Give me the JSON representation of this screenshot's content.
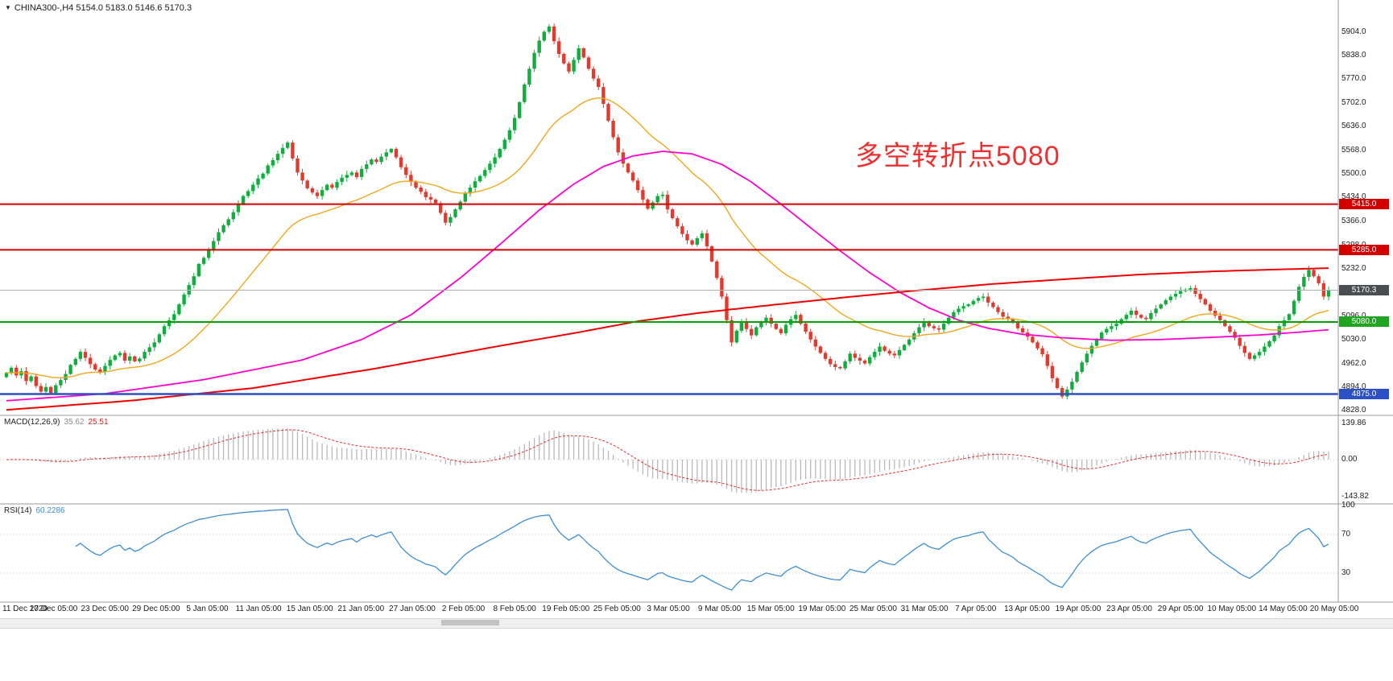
{
  "window": {
    "dropdown_icon": "▼",
    "symbol_period": "CHINA300-,H4",
    "ohlc_text": "5154.0 5183.0 5146.6 5170.3"
  },
  "annotation": {
    "text": "多空转折点5080"
  },
  "indicators": {
    "macd": {
      "name": "MACD(12,26,9)",
      "value_main": "35.62",
      "value_signal": "25.51",
      "params": {
        "fast": 12,
        "slow": 26,
        "signal": 9
      },
      "axis_labels": [
        "139.86",
        "0.00",
        "-143.82"
      ],
      "axis_values": [
        139.86,
        0,
        -143.82
      ]
    },
    "rsi": {
      "name": "RSI(14)",
      "value": "60.2286",
      "period": 14,
      "axis_labels": [
        "100",
        "70",
        "30"
      ],
      "axis_values": [
        100,
        70,
        30
      ],
      "level_lines": [
        70,
        30
      ]
    }
  },
  "price_scale": {
    "ticks": [
      5904,
      5838,
      5770,
      5702,
      5636,
      5568,
      5500,
      5434,
      5366,
      5298,
      5232,
      5164,
      5096,
      5030,
      4962,
      4894,
      4828
    ],
    "badges": [
      {
        "value": 5415.0,
        "text": "5415.0",
        "bg": "#d40000"
      },
      {
        "value": 5285.0,
        "text": "5285.0",
        "bg": "#d40000"
      },
      {
        "value": 5080.0,
        "text": "5080.0",
        "bg": "#1fa51f"
      },
      {
        "value": 4875.0,
        "text": "4875.0",
        "bg": "#2b50c6"
      },
      {
        "value": 5170.3,
        "text": "5170.3",
        "bg": "#4a4e53"
      }
    ]
  },
  "hlines": [
    {
      "value": 5170.3,
      "color": "#b0b0b0",
      "w": 1
    },
    {
      "value": 5415.0,
      "color": "#d40000",
      "w": 2
    },
    {
      "value": 5285.0,
      "color": "#d40000",
      "w": 2
    },
    {
      "value": 5080.0,
      "color": "#00a000",
      "w": 2
    },
    {
      "value": 4875.0,
      "color": "#2b50c6",
      "w": 2.5
    }
  ],
  "colors": {
    "up": "#0faf3d",
    "down": "#e23a2e",
    "macd_hist": "#b9b9b9",
    "macd_signal": "#e03131",
    "rsi": "#3f8ed0",
    "annotation": "#ed2f2f",
    "grid_dotted": "#c8c8c8",
    "separator": "#9a9a9a"
  },
  "chart_data": {
    "type": "candlestick",
    "symbol": "CHINA300-",
    "timeframe": "H4",
    "title": "CHINA300-,H4",
    "ylim": [
      4819,
      5945
    ],
    "last_candle": {
      "open": 5154.0,
      "high": 5183.0,
      "low": 5146.6,
      "close": 5170.3
    },
    "current_price": 5170.3,
    "key_levels": [
      5415.0,
      5285.0,
      5080.0,
      4875.0
    ],
    "annotation": "多空转折点5080",
    "x_labels": [
      "11 Dec 2020",
      "17 Dec 05:00",
      "23 Dec 05:00",
      "29 Dec 05:00",
      "5 Jan 05:00",
      "11 Jan 05:00",
      "15 Jan 05:00",
      "21 Jan 05:00",
      "27 Jan 05:00",
      "2 Feb 05:00",
      "8 Feb 05:00",
      "19 Feb 05:00",
      "25 Feb 05:00",
      "3 Mar 05:00",
      "9 Mar 05:00",
      "15 Mar 05:00",
      "19 Mar 05:00",
      "25 Mar 05:00",
      "31 Mar 05:00",
      "7 Apr 05:00",
      "13 Apr 05:00",
      "19 Apr 05:00",
      "23 Apr 05:00",
      "29 Apr 05:00",
      "10 May 05:00",
      "14 May 05:00",
      "20 May 05:00"
    ],
    "closes": [
      4935,
      4950,
      4928,
      4940,
      4912,
      4925,
      4898,
      4882,
      4895,
      4878,
      4900,
      4915,
      4932,
      4958,
      4975,
      4995,
      4978,
      4960,
      4945,
      4938,
      4955,
      4972,
      4985,
      4992,
      4970,
      4982,
      4968,
      4976,
      4995,
      5008,
      5022,
      5045,
      5068,
      5085,
      5102,
      5130,
      5158,
      5185,
      5210,
      5245,
      5262,
      5285,
      5310,
      5335,
      5355,
      5372,
      5392,
      5415,
      5438,
      5452,
      5470,
      5488,
      5502,
      5525,
      5540,
      5558,
      5575,
      5590,
      5545,
      5505,
      5482,
      5460,
      5448,
      5438,
      5455,
      5470,
      5462,
      5478,
      5490,
      5498,
      5505,
      5492,
      5515,
      5528,
      5542,
      5535,
      5550,
      5562,
      5572,
      5548,
      5520,
      5498,
      5478,
      5462,
      5450,
      5435,
      5428,
      5418,
      5390,
      5362,
      5378,
      5400,
      5422,
      5445,
      5462,
      5480,
      5495,
      5512,
      5530,
      5548,
      5572,
      5598,
      5625,
      5660,
      5705,
      5755,
      5800,
      5845,
      5880,
      5905,
      5920,
      5878,
      5842,
      5815,
      5792,
      5825,
      5858,
      5832,
      5800,
      5772,
      5748,
      5700,
      5652,
      5605,
      5562,
      5530,
      5505,
      5482,
      5455,
      5428,
      5402,
      5420,
      5438,
      5442,
      5400,
      5375,
      5352,
      5330,
      5312,
      5300,
      5318,
      5332,
      5295,
      5252,
      5205,
      5152,
      5085,
      5022,
      5055,
      5082,
      5060,
      5042,
      5065,
      5078,
      5092,
      5075,
      5060,
      5048,
      5072,
      5088,
      5100,
      5075,
      5052,
      5030,
      5010,
      4992,
      4975,
      4960,
      4952,
      4948,
      4968,
      4990,
      4978,
      4970,
      4962,
      4980,
      4995,
      5010,
      4998,
      4990,
      4985,
      5000,
      5015,
      5030,
      5048,
      5065,
      5080,
      5068,
      5062,
      5058,
      5075,
      5092,
      5108,
      5118,
      5125,
      5130,
      5140,
      5148,
      5152,
      5135,
      5122,
      5108,
      5095,
      5088,
      5078,
      5062,
      5050,
      5038,
      5022,
      5005,
      4988,
      4955,
      4920,
      4892,
      4868,
      4888,
      4910,
      4938,
      4965,
      4990,
      5012,
      5032,
      5050,
      5060,
      5068,
      5075,
      5088,
      5100,
      5112,
      5100,
      5092,
      5088,
      5105,
      5118,
      5130,
      5142,
      5152,
      5160,
      5168,
      5172,
      5176,
      5160,
      5145,
      5130,
      5112,
      5098,
      5085,
      5068,
      5052,
      5035,
      5012,
      4992,
      4975,
      4985,
      4995,
      5010,
      5025,
      5042,
      5068,
      5085,
      5102,
      5140,
      5180,
      5208,
      5228,
      5210,
      5190,
      5152,
      5170.3
    ],
    "overlays": {
      "ma_fast": {
        "style": "ema",
        "period": 30,
        "color": "#f2a71b",
        "width": 1.4
      },
      "ma_mid": {
        "style": "points",
        "color": "#ff00cf",
        "width": 1.8,
        "points": [
          [
            0,
            4856
          ],
          [
            20,
            4876
          ],
          [
            40,
            4916
          ],
          [
            60,
            4972
          ],
          [
            72,
            5030
          ],
          [
            82,
            5100
          ],
          [
            92,
            5205
          ],
          [
            100,
            5300
          ],
          [
            108,
            5398
          ],
          [
            115,
            5472
          ],
          [
            121,
            5522
          ],
          [
            127,
            5552
          ],
          [
            133,
            5565
          ],
          [
            139,
            5558
          ],
          [
            145,
            5528
          ],
          [
            151,
            5478
          ],
          [
            157,
            5415
          ],
          [
            163,
            5348
          ],
          [
            169,
            5282
          ],
          [
            175,
            5220
          ],
          [
            181,
            5165
          ],
          [
            187,
            5120
          ],
          [
            193,
            5085
          ],
          [
            199,
            5062
          ],
          [
            206,
            5045
          ],
          [
            214,
            5035
          ],
          [
            224,
            5028
          ],
          [
            234,
            5030
          ],
          [
            244,
            5036
          ],
          [
            254,
            5043
          ],
          [
            261,
            5050
          ],
          [
            268,
            5058
          ]
        ]
      },
      "ma_slow": {
        "style": "points",
        "color": "#f00000",
        "width": 2,
        "points": [
          [
            0,
            4830
          ],
          [
            25,
            4856
          ],
          [
            50,
            4892
          ],
          [
            75,
            4948
          ],
          [
            100,
            5012
          ],
          [
            115,
            5048
          ],
          [
            128,
            5082
          ],
          [
            140,
            5105
          ],
          [
            155,
            5128
          ],
          [
            170,
            5150
          ],
          [
            185,
            5170
          ],
          [
            200,
            5188
          ],
          [
            215,
            5202
          ],
          [
            230,
            5215
          ],
          [
            245,
            5224
          ],
          [
            257,
            5229
          ],
          [
            268,
            5233
          ]
        ]
      }
    }
  }
}
